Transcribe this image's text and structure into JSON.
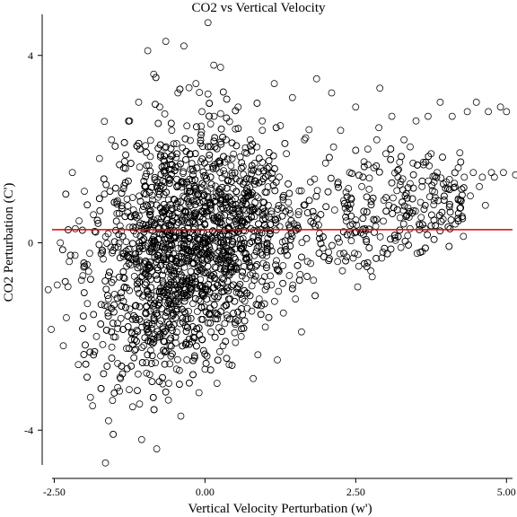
{
  "chart_data": {
    "type": "scatter",
    "title": "CO2 vs Vertical Velocity",
    "xlabel": "Vertical Velocity Perturbation (w')",
    "ylabel": "CO2 Perturbation (C')",
    "xlim": [
      -2.7,
      5.1
    ],
    "ylim": [
      -4.8,
      4.8
    ],
    "x_ticks": [
      {
        "value": -2.5,
        "label": "-2.50"
      },
      {
        "value": 0.0,
        "label": "0.00"
      },
      {
        "value": 2.5,
        "label": "2.50"
      },
      {
        "value": 5.0,
        "label": "5.00"
      }
    ],
    "y_ticks": [
      {
        "value": 4,
        "label": "4"
      },
      {
        "value": 0,
        "label": "0"
      },
      {
        "value": -4,
        "label": "-4"
      }
    ],
    "reference_line": {
      "y": 0.28,
      "color": "#e00000"
    },
    "marker": "open-circle",
    "points": [
      [
        -2.6,
        -1.0
      ],
      [
        -2.55,
        -1.85
      ],
      [
        -2.45,
        -0.9
      ],
      [
        -2.4,
        0.0
      ],
      [
        -2.35,
        -2.2
      ],
      [
        -2.3,
        -1.6
      ],
      [
        -2.25,
        -0.4
      ],
      [
        -2.2,
        1.5
      ],
      [
        -2.15,
        0.3
      ],
      [
        -2.1,
        -2.6
      ],
      [
        -2.05,
        -0.8
      ],
      [
        -2.0,
        1.1
      ],
      [
        -1.95,
        -1.3
      ],
      [
        -1.9,
        -3.3
      ],
      [
        -1.85,
        0.6
      ],
      [
        -1.8,
        -2.0
      ],
      [
        -1.75,
        1.8
      ],
      [
        -1.7,
        -0.2
      ],
      [
        -1.65,
        -4.7
      ],
      [
        -1.6,
        -3.8
      ],
      [
        -1.55,
        2.2
      ],
      [
        -1.5,
        -1.1
      ],
      [
        -1.45,
        0.9
      ],
      [
        -1.4,
        -2.9
      ],
      [
        -1.35,
        1.6
      ],
      [
        -1.3,
        -0.5
      ],
      [
        -1.25,
        2.6
      ],
      [
        -1.2,
        -3.5
      ],
      [
        -1.15,
        -1.6
      ],
      [
        -1.1,
        3.0
      ],
      [
        -1.05,
        -4.2
      ],
      [
        -1.0,
        1.2
      ],
      [
        -0.95,
        4.1
      ],
      [
        -0.9,
        -2.3
      ],
      [
        -0.85,
        3.6
      ],
      [
        -0.8,
        -4.4
      ],
      [
        -0.75,
        2.9
      ],
      [
        -0.7,
        -1.8
      ],
      [
        -0.65,
        4.3
      ],
      [
        -0.6,
        -3.0
      ],
      [
        -0.55,
        2.4
      ],
      [
        -0.5,
        -0.9
      ],
      [
        -0.45,
        3.2
      ],
      [
        -0.4,
        -3.7
      ],
      [
        -0.35,
        4.2
      ],
      [
        -0.3,
        -2.5
      ],
      [
        -0.25,
        1.9
      ],
      [
        -0.2,
        -1.3
      ],
      [
        -0.15,
        3.4
      ],
      [
        -0.1,
        -3.2
      ],
      [
        -0.05,
        2.8
      ],
      [
        0.0,
        -2.7
      ],
      [
        0.05,
        4.7
      ],
      [
        0.1,
        -1.9
      ],
      [
        0.15,
        2.7
      ],
      [
        0.2,
        -3.0
      ],
      [
        0.25,
        1.5
      ],
      [
        0.3,
        -2.2
      ],
      [
        0.35,
        2.2
      ],
      [
        0.4,
        -2.6
      ],
      [
        0.45,
        1.8
      ],
      [
        0.5,
        -1.7
      ],
      [
        0.55,
        2.9
      ],
      [
        0.6,
        -2.0
      ],
      [
        0.65,
        1.3
      ],
      [
        0.7,
        -1.4
      ],
      [
        0.75,
        2.2
      ],
      [
        0.8,
        -2.9
      ],
      [
        0.85,
        1.0
      ],
      [
        0.9,
        -1.2
      ],
      [
        0.95,
        2.6
      ],
      [
        1.0,
        -1.8
      ],
      [
        1.05,
        0.8
      ],
      [
        1.1,
        -0.9
      ],
      [
        1.15,
        3.4
      ],
      [
        1.2,
        -2.5
      ],
      [
        1.25,
        2.5
      ],
      [
        1.3,
        -1.5
      ],
      [
        1.35,
        1.9
      ],
      [
        1.4,
        -0.7
      ],
      [
        1.45,
        3.1
      ],
      [
        1.5,
        -1.2
      ],
      [
        1.55,
        0.6
      ],
      [
        1.6,
        -1.9
      ],
      [
        1.65,
        2.2
      ],
      [
        1.7,
        -0.4
      ],
      [
        1.75,
        1.3
      ],
      [
        1.8,
        -0.8
      ],
      [
        1.85,
        3.5
      ],
      [
        1.9,
        0.2
      ],
      [
        2.0,
        1.7
      ],
      [
        2.05,
        -0.2
      ],
      [
        2.1,
        3.2
      ],
      [
        2.15,
        0.7
      ],
      [
        2.2,
        -0.4
      ],
      [
        2.25,
        2.4
      ],
      [
        2.3,
        0.9
      ],
      [
        2.35,
        -0.3
      ],
      [
        2.4,
        1.5
      ],
      [
        2.45,
        0.4
      ],
      [
        2.5,
        2.9
      ],
      [
        2.55,
        -0.5
      ],
      [
        2.6,
        1.2
      ],
      [
        2.65,
        0.3
      ],
      [
        2.7,
        2.0
      ],
      [
        2.75,
        -0.6
      ],
      [
        2.8,
        1.6
      ],
      [
        2.85,
        0.5
      ],
      [
        2.9,
        3.3
      ],
      [
        2.95,
        -0.2
      ],
      [
        3.0,
        1.9
      ],
      [
        3.05,
        0.8
      ],
      [
        3.1,
        2.7
      ],
      [
        3.15,
        0.1
      ],
      [
        3.2,
        1.4
      ],
      [
        3.25,
        -0.1
      ],
      [
        3.3,
        2.2
      ],
      [
        3.35,
        0.6
      ],
      [
        3.4,
        0.3
      ],
      [
        3.45,
        1.7
      ],
      [
        3.5,
        2.6
      ],
      [
        3.55,
        0.4
      ],
      [
        3.6,
        1.2
      ],
      [
        3.65,
        0.3
      ],
      [
        3.7,
        2.7
      ],
      [
        3.75,
        1.9
      ],
      [
        3.8,
        0.9
      ],
      [
        3.85,
        1.5
      ],
      [
        3.9,
        3.0
      ],
      [
        3.95,
        0.5
      ],
      [
        4.0,
        1.3
      ],
      [
        4.1,
        2.7
      ],
      [
        4.2,
        1.6
      ],
      [
        4.25,
        0.9
      ],
      [
        4.3,
        1.4
      ],
      [
        4.35,
        2.8
      ],
      [
        4.4,
        1.0
      ],
      [
        4.45,
        1.5
      ],
      [
        4.5,
        3.0
      ],
      [
        4.55,
        1.2
      ],
      [
        4.6,
        1.4
      ],
      [
        4.7,
        2.8
      ],
      [
        4.75,
        1.5
      ],
      [
        4.8,
        1.4
      ],
      [
        4.9,
        2.9
      ],
      [
        5.0,
        2.8
      ],
      [
        5.15,
        1.45
      ],
      [
        4.95,
        1.5
      ],
      [
        4.65,
        0.8
      ],
      [
        4.15,
        0.4
      ]
    ]
  }
}
